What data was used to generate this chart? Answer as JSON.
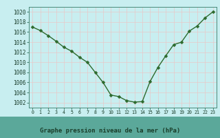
{
  "x": [
    0,
    1,
    2,
    3,
    4,
    5,
    6,
    7,
    8,
    9,
    10,
    11,
    12,
    13,
    14,
    15,
    16,
    17,
    18,
    19,
    20,
    21,
    22,
    23
  ],
  "y": [
    1017.0,
    1016.3,
    1015.3,
    1014.2,
    1013.0,
    1012.2,
    1011.0,
    1010.0,
    1008.0,
    1006.0,
    1003.5,
    1003.2,
    1002.4,
    1002.1,
    1002.2,
    1006.2,
    1009.0,
    1011.3,
    1013.5,
    1014.0,
    1016.2,
    1017.2,
    1018.8,
    1020.0
  ],
  "line_color": "#2d6a2d",
  "marker": "D",
  "marker_size": 2.5,
  "line_width": 1.0,
  "plot_bg_color": "#c8eef0",
  "fig_bg_color": "#c8eef0",
  "bottom_bar_color": "#5ba89a",
  "grid_color": "#e8c8c8",
  "spine_color": "#4a8a7a",
  "title": "Graphe pression niveau de la mer (hPa)",
  "title_color": "#1a3d2a",
  "tick_color": "#1a3d2a",
  "label_color": "#1a3d2a",
  "ylim": [
    1001,
    1021
  ],
  "xlim": [
    -0.5,
    23.5
  ],
  "yticks": [
    1002,
    1004,
    1006,
    1008,
    1010,
    1012,
    1014,
    1016,
    1018,
    1020
  ],
  "xticks": [
    0,
    1,
    2,
    3,
    4,
    5,
    6,
    7,
    8,
    9,
    10,
    11,
    12,
    13,
    14,
    15,
    16,
    17,
    18,
    19,
    20,
    21,
    22,
    23
  ],
  "xlabel_fontsize": 6.5,
  "tick_fontsize": 5.5,
  "xtick_fontsize": 4.8
}
